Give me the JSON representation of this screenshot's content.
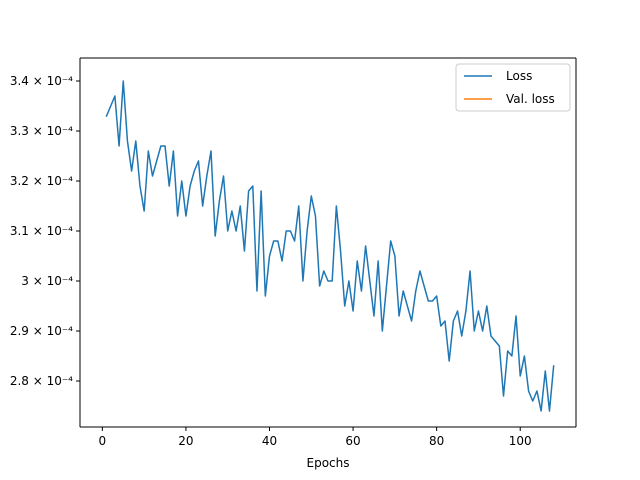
{
  "chart_data": {
    "type": "line",
    "xlabel": "Epochs",
    "ylabel": "",
    "title": "",
    "xlim": [
      -5.35,
      113.35
    ],
    "ylim": [
      0.0002708,
      0.0003446
    ],
    "x_ticks": [
      0,
      20,
      40,
      60,
      80,
      100
    ],
    "y_ticks": [
      {
        "value": 0.00028,
        "label": "2.8 × 10⁻⁴"
      },
      {
        "value": 0.00029,
        "label": "2.9 × 10⁻⁴"
      },
      {
        "value": 0.0003,
        "label": "3 × 10⁻⁴"
      },
      {
        "value": 0.00031,
        "label": "3.1 × 10⁻⁴"
      },
      {
        "value": 0.00032,
        "label": "3.2 × 10⁻⁴"
      },
      {
        "value": 0.00033,
        "label": "3.3 × 10⁻⁴"
      },
      {
        "value": 0.00034,
        "label": "3.4 × 10⁻⁴"
      }
    ],
    "grid": false,
    "legend_position": "top-right",
    "series": [
      {
        "name": "Loss",
        "color": "#1f77b4",
        "x": [
          1,
          2,
          3,
          4,
          5,
          6,
          7,
          8,
          9,
          10,
          11,
          12,
          13,
          14,
          15,
          16,
          17,
          18,
          19,
          20,
          21,
          22,
          23,
          24,
          25,
          26,
          27,
          28,
          29,
          30,
          31,
          32,
          33,
          34,
          35,
          36,
          37,
          38,
          39,
          40,
          41,
          42,
          43,
          44,
          45,
          46,
          47,
          48,
          49,
          50,
          51,
          52,
          53,
          54,
          55,
          56,
          57,
          58,
          59,
          60,
          61,
          62,
          63,
          64,
          65,
          66,
          67,
          68,
          69,
          70,
          71,
          72,
          73,
          74,
          75,
          76,
          77,
          78,
          79,
          80,
          81,
          82,
          83,
          84,
          85,
          86,
          87,
          88,
          89,
          90,
          91,
          92,
          93,
          94,
          95,
          96,
          97,
          98,
          99,
          100,
          101,
          102,
          103,
          104,
          105,
          106,
          107,
          108
        ],
        "y": [
          0.000333,
          0.000335,
          0.000337,
          0.000327,
          0.00034,
          0.000328,
          0.000322,
          0.000328,
          0.000319,
          0.000314,
          0.000326,
          0.000321,
          0.000324,
          0.000327,
          0.000327,
          0.000319,
          0.000326,
          0.000313,
          0.00032,
          0.000313,
          0.000319,
          0.000322,
          0.000324,
          0.000315,
          0.000321,
          0.000326,
          0.000309,
          0.000316,
          0.000321,
          0.00031,
          0.000314,
          0.00031,
          0.000315,
          0.000306,
          0.000318,
          0.000319,
          0.000298,
          0.000318,
          0.000297,
          0.000305,
          0.000308,
          0.000308,
          0.000304,
          0.00031,
          0.00031,
          0.000308,
          0.000315,
          0.0003,
          0.00031,
          0.000317,
          0.000313,
          0.000299,
          0.000302,
          0.0003,
          0.0003,
          0.000315,
          0.000306,
          0.000295,
          0.0003,
          0.000294,
          0.000304,
          0.000298,
          0.000307,
          0.0003,
          0.000293,
          0.000304,
          0.00029,
          0.000299,
          0.000308,
          0.000305,
          0.000293,
          0.000298,
          0.000295,
          0.000292,
          0.000298,
          0.000302,
          0.000299,
          0.000296,
          0.000296,
          0.000297,
          0.000291,
          0.000292,
          0.000284,
          0.000292,
          0.000294,
          0.000289,
          0.000294,
          0.000302,
          0.00029,
          0.000294,
          0.00029,
          0.000295,
          0.000289,
          0.000288,
          0.000287,
          0.000277,
          0.000286,
          0.000285,
          0.000293,
          0.000281,
          0.000285,
          0.000278,
          0.000276,
          0.000278,
          0.000274,
          0.000282,
          0.000274,
          0.000283
        ]
      },
      {
        "name": "Val. loss",
        "color": "#ff7f0e",
        "x": [],
        "y": []
      }
    ]
  }
}
